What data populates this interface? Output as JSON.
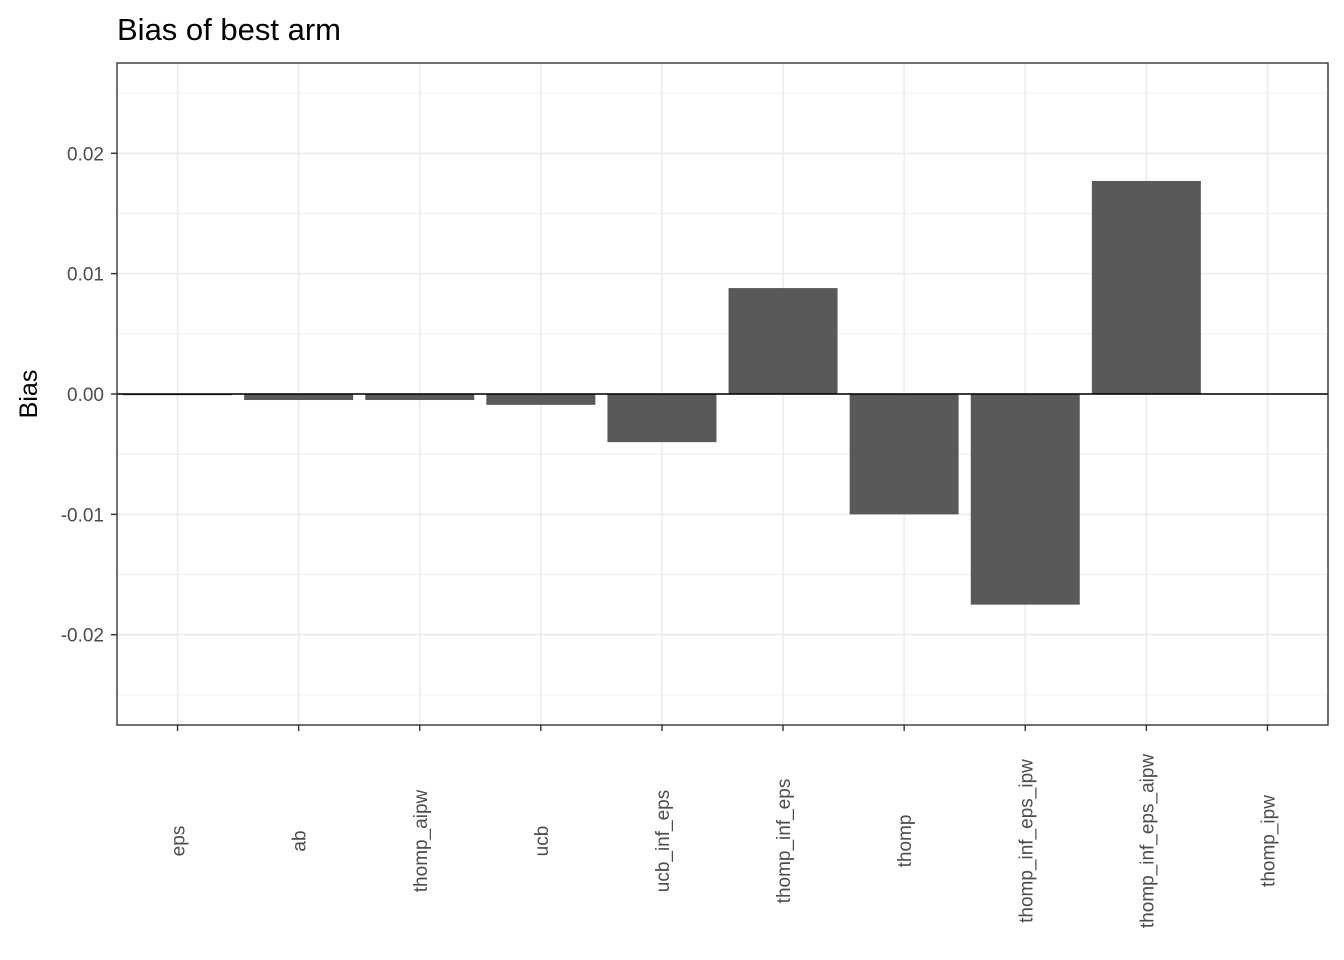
{
  "chart_data": {
    "type": "bar",
    "title": "Bias of best arm",
    "xlabel": "",
    "ylabel": "Bias",
    "categories": [
      "eps",
      "ab",
      "thomp_aipw",
      "ucb",
      "ucb_inf_eps",
      "thomp_inf_eps",
      "thomp",
      "thomp_inf_eps_ipw",
      "thomp_inf_eps_aipw",
      "thomp_ipw"
    ],
    "values": [
      -0.0001,
      -0.0005,
      -0.0005,
      -0.0009,
      -0.004,
      0.0088,
      -0.01,
      -0.0175,
      0.0177,
      0.0
    ],
    "ylim": [
      -0.0275,
      0.0275
    ],
    "yticks": [
      -0.02,
      -0.01,
      0.0,
      0.01,
      0.02
    ],
    "ytick_labels": [
      "-0.02",
      "-0.01",
      "0.00",
      "0.01",
      "0.02"
    ],
    "grid": true,
    "bar_color": "#595959",
    "theme": "bw"
  }
}
